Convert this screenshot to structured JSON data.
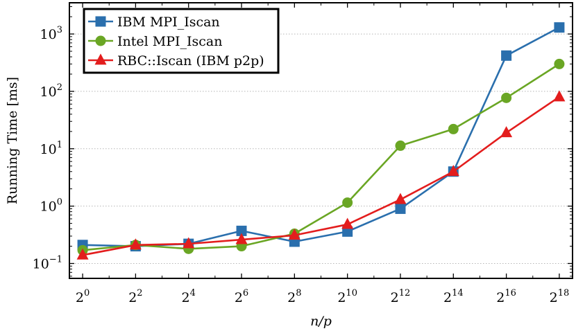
{
  "chart_data": {
    "type": "line",
    "title": "",
    "xlabel": "n/p",
    "ylabel": "Running Time [ms]",
    "yscale": "log",
    "ylim": [
      0.055,
      3500
    ],
    "xlim": [
      -0.5,
      18.5
    ],
    "grid": "horizontal dotted",
    "legend_position": "top-left",
    "x": [
      0,
      2,
      4,
      6,
      8,
      10,
      12,
      14,
      16,
      18
    ],
    "x_tick_labels": [
      {
        "base": "2",
        "exp": "0"
      },
      {
        "base": "2",
        "exp": "2"
      },
      {
        "base": "2",
        "exp": "4"
      },
      {
        "base": "2",
        "exp": "6"
      },
      {
        "base": "2",
        "exp": "8"
      },
      {
        "base": "2",
        "exp": "10"
      },
      {
        "base": "2",
        "exp": "12"
      },
      {
        "base": "2",
        "exp": "14"
      },
      {
        "base": "2",
        "exp": "16"
      },
      {
        "base": "2",
        "exp": "18"
      }
    ],
    "y_tick_labels": [
      {
        "value": 0.1,
        "base": "10",
        "exp": "−1"
      },
      {
        "value": 1,
        "base": "10",
        "exp": "0"
      },
      {
        "value": 10,
        "base": "10",
        "exp": "1"
      },
      {
        "value": 100,
        "base": "10",
        "exp": "2"
      },
      {
        "value": 1000,
        "base": "10",
        "exp": "3"
      }
    ],
    "series": [
      {
        "name": "IBM MPI_Iscan",
        "color": "#2a6fad",
        "marker": "square",
        "values": [
          0.21,
          0.2,
          0.22,
          0.37,
          0.24,
          0.36,
          0.9,
          4.0,
          420,
          1300
        ]
      },
      {
        "name": "Intel MPI_Iscan",
        "color": "#6aa624",
        "marker": "circle",
        "values": [
          0.17,
          0.21,
          0.18,
          0.2,
          0.33,
          1.15,
          11.3,
          22,
          77,
          300
        ]
      },
      {
        "name": "RBC::Iscan (IBM p2p)",
        "color": "#e31d1d",
        "marker": "triangle",
        "values": [
          0.14,
          0.21,
          0.22,
          0.26,
          0.31,
          0.48,
          1.3,
          4.0,
          19,
          80
        ]
      }
    ]
  }
}
